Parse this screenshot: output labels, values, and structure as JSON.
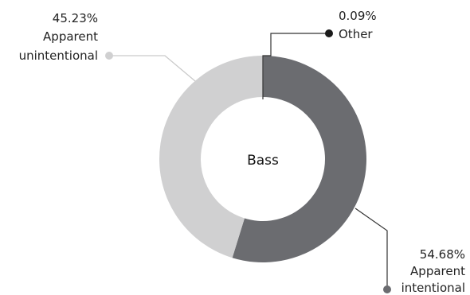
{
  "chart_data": {
    "type": "pie",
    "variant": "donut",
    "center_label": "Bass",
    "series": [
      {
        "name": "Bass",
        "slices": [
          {
            "label_line1": "Other",
            "label_line2": "",
            "value": 0.09,
            "value_text": "0.09%",
            "color": "#1a1a1a"
          },
          {
            "label_line1": "Apparent",
            "label_line2": "intentional",
            "value": 54.68,
            "value_text": "54.68%",
            "color": "#6b6c70"
          },
          {
            "label_line1": "Apparent",
            "label_line2": "unintentional",
            "value": 45.23,
            "value_text": "45.23%",
            "color": "#d0d0d1"
          }
        ]
      }
    ],
    "legend": "none"
  }
}
